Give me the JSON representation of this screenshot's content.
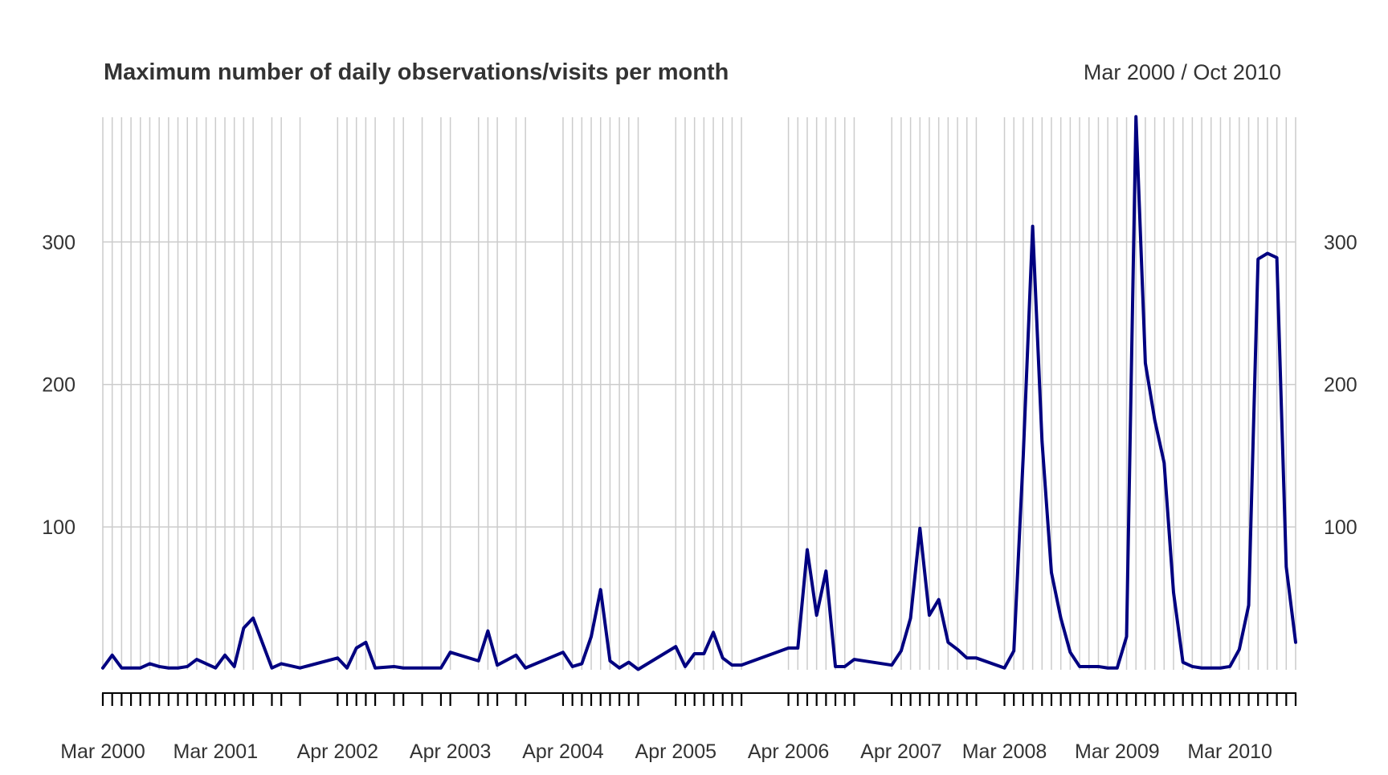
{
  "chart_data": {
    "type": "line",
    "title": "Maximum number of daily observations/visits per month",
    "date_range": "Mar 2000 / Oct 2010",
    "xlabel": "",
    "ylabel": "",
    "ylim": [
      -8,
      388
    ],
    "yticks": [
      100,
      200,
      300
    ],
    "ytick_labels": [
      "100",
      "200",
      "300"
    ],
    "x_start_month_index": 24002,
    "x_end_month_index": 24129,
    "x_tick_labels": [
      {
        "label": "Mar 2000",
        "month_index": 24002
      },
      {
        "label": "Mar 2001",
        "month_index": 24014
      },
      {
        "label": "Apr 2002",
        "month_index": 24027
      },
      {
        "label": "Apr 2003",
        "month_index": 24039
      },
      {
        "label": "Apr 2004",
        "month_index": 24051
      },
      {
        "label": "Apr 2005",
        "month_index": 24063
      },
      {
        "label": "Apr 2006",
        "month_index": 24075
      },
      {
        "label": "Apr 2007",
        "month_index": 24087
      },
      {
        "label": "Mar 2008",
        "month_index": 24098
      },
      {
        "label": "Mar 2009",
        "month_index": 24110
      },
      {
        "label": "Mar 2010",
        "month_index": 24122
      }
    ],
    "grid": "vertical lines at each observed month, horizontal lines at y ticks",
    "series": [
      {
        "name": "Maximum number of daily observations/visits per month",
        "color": "#000080",
        "points": [
          [
            24002,
            1
          ],
          [
            24003,
            10
          ],
          [
            24004,
            1
          ],
          [
            24005,
            1
          ],
          [
            24006,
            1
          ],
          [
            24007,
            4
          ],
          [
            24008,
            2
          ],
          [
            24009,
            1
          ],
          [
            24010,
            1
          ],
          [
            24011,
            2
          ],
          [
            24012,
            7
          ],
          [
            24013,
            4
          ],
          [
            24014,
            1
          ],
          [
            24015,
            10
          ],
          [
            24016,
            2
          ],
          [
            24017,
            29
          ],
          [
            24018,
            36
          ],
          [
            24020,
            1
          ],
          [
            24021,
            4
          ],
          [
            24023,
            1
          ],
          [
            24027,
            8
          ],
          [
            24028,
            1
          ],
          [
            24029,
            15
          ],
          [
            24030,
            19
          ],
          [
            24031,
            1
          ],
          [
            24033,
            2
          ],
          [
            24034,
            1
          ],
          [
            24036,
            1
          ],
          [
            24038,
            1
          ],
          [
            24039,
            12
          ],
          [
            24042,
            6
          ],
          [
            24043,
            27
          ],
          [
            24044,
            3
          ],
          [
            24046,
            10
          ],
          [
            24047,
            1
          ],
          [
            24051,
            12
          ],
          [
            24052,
            2
          ],
          [
            24053,
            4
          ],
          [
            24054,
            23
          ],
          [
            24055,
            56
          ],
          [
            24056,
            6
          ],
          [
            24057,
            1
          ],
          [
            24058,
            5
          ],
          [
            24059,
            0
          ],
          [
            24063,
            16
          ],
          [
            24064,
            2
          ],
          [
            24065,
            11
          ],
          [
            24066,
            11
          ],
          [
            24067,
            26
          ],
          [
            24068,
            8
          ],
          [
            24069,
            3
          ],
          [
            24070,
            3
          ],
          [
            24075,
            15
          ],
          [
            24076,
            15
          ],
          [
            24077,
            84
          ],
          [
            24078,
            38
          ],
          [
            24079,
            69
          ],
          [
            24080,
            2
          ],
          [
            24081,
            2
          ],
          [
            24082,
            7
          ],
          [
            24086,
            3
          ],
          [
            24087,
            13
          ],
          [
            24088,
            36
          ],
          [
            24089,
            99
          ],
          [
            24090,
            38
          ],
          [
            24091,
            49
          ],
          [
            24092,
            19
          ],
          [
            24093,
            14
          ],
          [
            24094,
            8
          ],
          [
            24095,
            8
          ],
          [
            24098,
            1
          ],
          [
            24099,
            13
          ],
          [
            24100,
            150
          ],
          [
            24101,
            311
          ],
          [
            24102,
            160
          ],
          [
            24103,
            68
          ],
          [
            24104,
            36
          ],
          [
            24105,
            12
          ],
          [
            24106,
            2
          ],
          [
            24107,
            2
          ],
          [
            24108,
            2
          ],
          [
            24109,
            1
          ],
          [
            24110,
            1
          ],
          [
            24111,
            23
          ],
          [
            24112,
            388
          ],
          [
            24113,
            215
          ],
          [
            24114,
            175
          ],
          [
            24115,
            145
          ],
          [
            24116,
            54
          ],
          [
            24117,
            5
          ],
          [
            24118,
            2
          ],
          [
            24119,
            1
          ],
          [
            24120,
            1
          ],
          [
            24121,
            1
          ],
          [
            24122,
            2
          ],
          [
            24123,
            14
          ],
          [
            24124,
            45
          ],
          [
            24125,
            288
          ],
          [
            24126,
            292
          ],
          [
            24127,
            289
          ],
          [
            24128,
            72
          ],
          [
            24129,
            19
          ]
        ]
      }
    ]
  }
}
